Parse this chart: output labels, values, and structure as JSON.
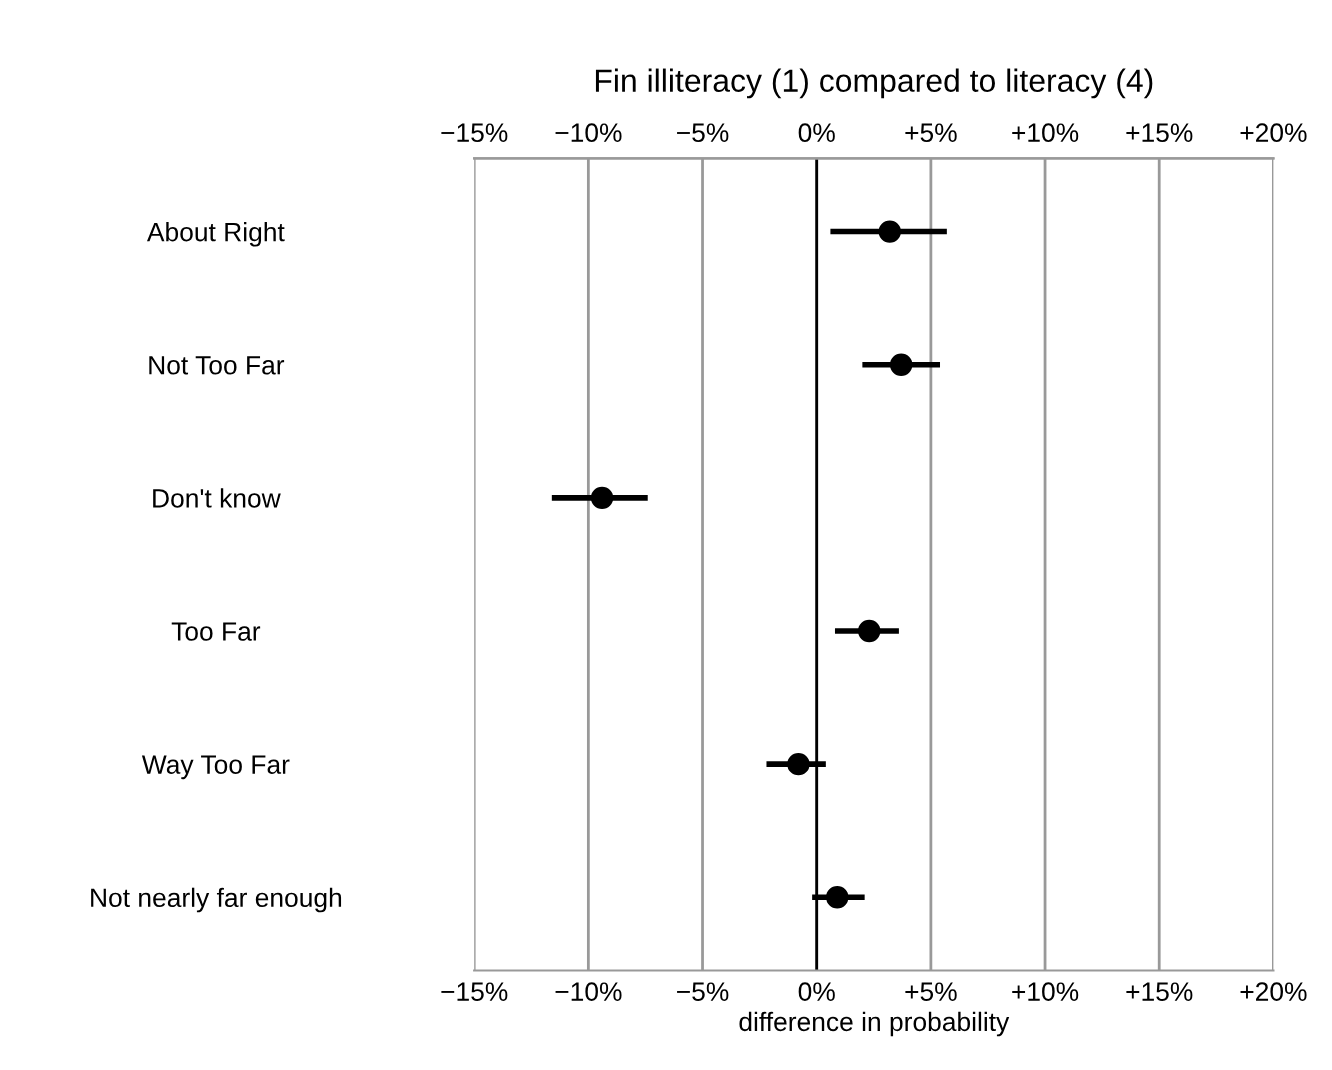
{
  "chart_data": {
    "type": "scatter",
    "orientation": "horizontal",
    "title": "Fin illiteracy (1) compared to literacy (4)",
    "xlabel": "difference in probability",
    "categories": [
      "About Right",
      "Not Too Far",
      "Don't know",
      "Too Far",
      "Way Too Far",
      "Not nearly far enough"
    ],
    "values": [
      3.2,
      3.7,
      -9.4,
      2.3,
      -0.8,
      0.9
    ],
    "errors": [
      [
        0.6,
        5.7
      ],
      [
        2.0,
        5.4
      ],
      [
        -11.6,
        -7.4
      ],
      [
        0.8,
        3.6
      ],
      [
        -2.2,
        0.4
      ],
      [
        -0.2,
        2.1
      ]
    ],
    "color": "#000000",
    "marker": "circle",
    "grid": "x",
    "xlim": [
      -15,
      20
    ],
    "xticks": [
      {
        "value": -15,
        "label": "−15%"
      },
      {
        "value": -10,
        "label": "−10%"
      },
      {
        "value": -5,
        "label": "−5%"
      },
      {
        "value": 0,
        "label": "0%"
      },
      {
        "value": 5,
        "label": "+5%"
      },
      {
        "value": 10,
        "label": "+10%"
      },
      {
        "value": 15,
        "label": "+15%"
      },
      {
        "value": 20,
        "label": "+20%"
      }
    ],
    "x2lim": [
      -15,
      20
    ],
    "x2ticks": [
      {
        "value": -15,
        "label": "−15%"
      },
      {
        "value": -10,
        "label": "−10%"
      },
      {
        "value": -5,
        "label": "−5%"
      },
      {
        "value": 0,
        "label": "0%"
      },
      {
        "value": 5,
        "label": "+5%"
      },
      {
        "value": 10,
        "label": "+10%"
      },
      {
        "value": 15,
        "label": "+15%"
      },
      {
        "value": 20,
        "label": "+20%"
      }
    ],
    "ref_lines": [
      {
        "axis": "x",
        "value": 0,
        "color": "#000000"
      }
    ]
  }
}
